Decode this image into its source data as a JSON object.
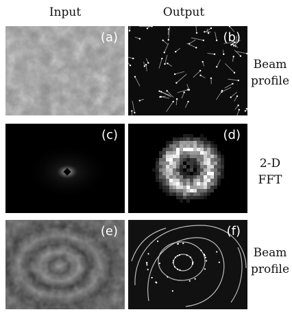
{
  "columns": {
    "input": "Input",
    "output": "Output"
  },
  "panels": {
    "a": "(a)",
    "b": "(b)",
    "c": "(c)",
    "d": "(d)",
    "e": "(e)",
    "f": "(f)"
  },
  "rows": {
    "row1": {
      "line1": "Beam",
      "line2": "profile"
    },
    "row2": {
      "line1": "2-D",
      "line2": "FFT"
    },
    "row3": {
      "line1": "Beam",
      "line2": "profile"
    }
  }
}
